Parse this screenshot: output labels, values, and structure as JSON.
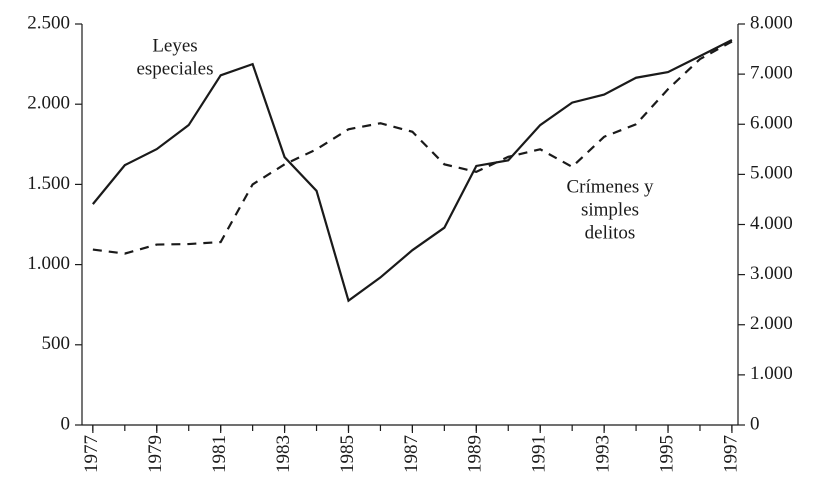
{
  "chart_data": {
    "type": "line",
    "x": [
      1977,
      1978,
      1979,
      1980,
      1981,
      1982,
      1983,
      1984,
      1985,
      1986,
      1987,
      1988,
      1989,
      1990,
      1991,
      1992,
      1993,
      1994,
      1995,
      1996,
      1997
    ],
    "series": [
      {
        "name": "Leyes especiales",
        "color": "#1a1a1a",
        "dash": "solid",
        "axis": "y",
        "values": [
          1377,
          1620,
          1720,
          1870,
          2180,
          2250,
          1670,
          1460,
          775,
          920,
          1090,
          1230,
          1615,
          1650,
          1870,
          2010,
          2060,
          2165,
          2200,
          2300,
          2400
        ]
      },
      {
        "name": "Crímenes y simples delitos",
        "color": "#1a1a1a",
        "dash": "dashed",
        "axis": "y2",
        "values": [
          3500,
          3420,
          3600,
          3610,
          3650,
          4800,
          5200,
          5500,
          5900,
          6020,
          5850,
          5200,
          5050,
          5350,
          5500,
          5150,
          5750,
          6000,
          6700,
          7300,
          7650
        ]
      }
    ],
    "annotations": [
      {
        "series": 0,
        "lines": [
          "Leyes",
          "especiales"
        ]
      },
      {
        "series": 1,
        "lines": [
          "Crímenes y",
          "simples",
          "delitos"
        ]
      }
    ],
    "xlim": [
      1976.66,
      1997.19
    ],
    "xticks": [
      1977,
      1979,
      1981,
      1983,
      1985,
      1987,
      1989,
      1991,
      1993,
      1995,
      1997
    ],
    "ylim": [
      0,
      2500
    ],
    "yticks": [
      0,
      500,
      {
        "value": 1000,
        "label": "1.000"
      },
      {
        "value": 1500,
        "label": "1.500"
      },
      {
        "value": 2000,
        "label": "2.000"
      },
      {
        "value": 2500,
        "label": "2.500"
      }
    ],
    "y2lim": [
      0,
      8000
    ],
    "y2ticks": [
      0,
      {
        "value": 1000,
        "label": "1.000"
      },
      {
        "value": 2000,
        "label": "2.000"
      },
      {
        "value": 3000,
        "label": "3.000"
      },
      {
        "value": 4000,
        "label": "4.000"
      },
      {
        "value": 5000,
        "label": "5.000"
      },
      {
        "value": 6000,
        "label": "6.000"
      },
      {
        "value": 7000,
        "label": "7.000"
      },
      {
        "value": 8000,
        "label": "8.000"
      }
    ],
    "grid": false
  }
}
